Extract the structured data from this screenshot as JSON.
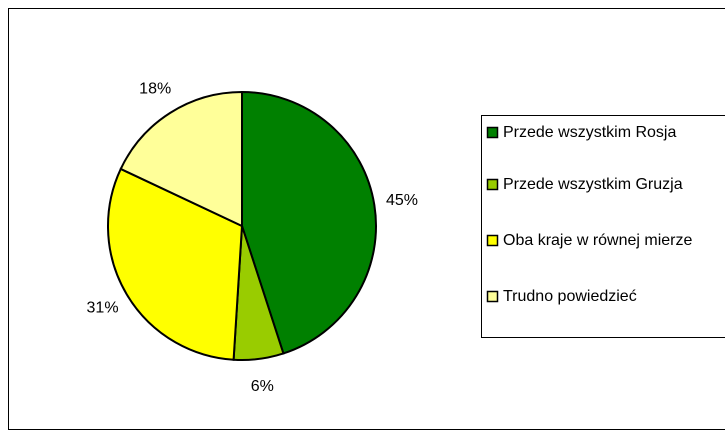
{
  "chart_data": {
    "type": "pie",
    "categories": [
      "Przede wszystkim Rosja",
      "Przede wszystkim Gruzja",
      "Oba kraje w równej mierze",
      "Trudno powiedzieć"
    ],
    "values": [
      45,
      6,
      31,
      18
    ],
    "value_labels": [
      "45%",
      "6%",
      "31%",
      "18%"
    ],
    "colors": [
      "#008000",
      "#99cc00",
      "#ffff00",
      "#ffff99"
    ],
    "legend": "right"
  }
}
